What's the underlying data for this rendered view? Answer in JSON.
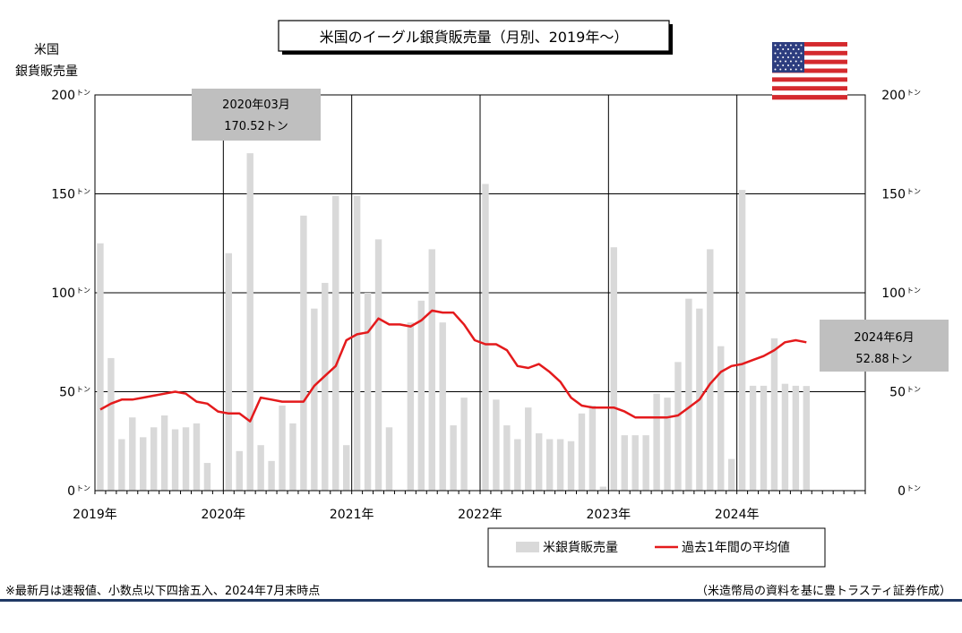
{
  "chart_data": {
    "type": "bar",
    "title": "米国のイーグル銀貨販売量（月別、2019年～）",
    "ylabel_lines": [
      "米国",
      "銀貨販売量"
    ],
    "yticks": [
      "0",
      "50",
      "100",
      "150",
      "200"
    ],
    "ytick_unit": "トン",
    "ylim": [
      0,
      200
    ],
    "year_labels": [
      "2019年",
      "2020年",
      "2021年",
      "2022年",
      "2023年",
      "2024年"
    ],
    "grid": true,
    "legend_position": "bottom-center",
    "series": [
      {
        "name": "米銀貨販売量",
        "type": "bar",
        "color": "#d9d9d9",
        "values": [
          125,
          67,
          26,
          37,
          27,
          32,
          38,
          31,
          32,
          34,
          14,
          null,
          120,
          20,
          170.52,
          23,
          15,
          43,
          34,
          139,
          92,
          105,
          149,
          23,
          149,
          100,
          127,
          32,
          null,
          85,
          96,
          122,
          85,
          33,
          47,
          null,
          155,
          46,
          33,
          26,
          42,
          29,
          26,
          26,
          25,
          39,
          43,
          2,
          123,
          28,
          28,
          28,
          49,
          47,
          65,
          97,
          92,
          122,
          73,
          16,
          152,
          53,
          53,
          77,
          54,
          53,
          52.88
        ]
      },
      {
        "name": "過去1年間の平均値",
        "type": "line",
        "color": "#e41a1c",
        "values": [
          41,
          44,
          46,
          46,
          47,
          48,
          49,
          50,
          49,
          45,
          44,
          40,
          39,
          39,
          35,
          47,
          46,
          45,
          45,
          45,
          53,
          58,
          63,
          76,
          79,
          80,
          87,
          84,
          84,
          83,
          86,
          91,
          90,
          90,
          84,
          76,
          74,
          74,
          71,
          63,
          62,
          64,
          60,
          55,
          47,
          43,
          42,
          42,
          42,
          40,
          37,
          37,
          37,
          37,
          38,
          42,
          46,
          54,
          60,
          63,
          64,
          66,
          68,
          71,
          75,
          76,
          75
        ]
      }
    ],
    "annotations": [
      {
        "date": "2020年03月",
        "value": "170.52トン"
      },
      {
        "date": "2024年6月",
        "value": "52.88トン"
      }
    ]
  },
  "footer": {
    "note": "※最新月は速報値、小数点以下四捨五入、2024年7月末時点",
    "source": "（米造幣局の資料を基に豊トラスティ証券作成）"
  },
  "colors": {
    "bar": "#d9d9d9",
    "line": "#e41a1c",
    "callout": "#bfbfbf",
    "rule": "#1f3864"
  },
  "icons": {
    "flag": "us-flag-icon"
  }
}
